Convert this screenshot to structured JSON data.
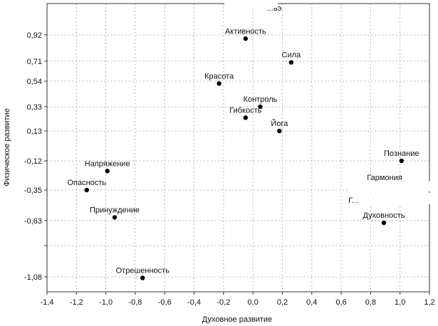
{
  "chart_data": {
    "type": "scatter",
    "xlabel": "Духовное развитие",
    "ylabel": "Физическое развитие",
    "xlim": [
      -1.4,
      1.2
    ],
    "ylim": [
      -1.22,
      1.14
    ],
    "grid": true,
    "x_ticks": [
      -1.4,
      -1.2,
      -1.0,
      -0.8,
      -0.6,
      -0.4,
      -0.2,
      0.0,
      0.2,
      0.4,
      0.6,
      0.8,
      1.0,
      1.2
    ],
    "x_tick_labels": [
      "-1,4",
      "-1,2",
      "-1,0",
      "-0,8",
      "-0,6",
      "-0,4",
      "-0,2",
      "0,0",
      "0,2",
      "0,4",
      "0,6",
      "0,8",
      "1,0",
      "1,2"
    ],
    "y_ticks": [
      0.92,
      0.71,
      0.54,
      0.33,
      0.13,
      -0.12,
      -0.35,
      -0.63,
      -1.08
    ],
    "y_tick_labels": [
      "0,92",
      "0,71",
      "0,54",
      "0,33",
      "0,13",
      "-0,12",
      "-0,35",
      "-0,63",
      "-1,08"
    ],
    "y_extra_grid": [
      -0.86,
      -0.86
    ],
    "points": [
      {
        "label": "Активность",
        "x": -0.05,
        "y": 0.89
      },
      {
        "label": "Сила",
        "x": 0.26,
        "y": 0.7
      },
      {
        "label": "Красота",
        "x": -0.23,
        "y": 0.52
      },
      {
        "label": "Контроль",
        "x": 0.05,
        "y": 0.33
      },
      {
        "label": "Гибкость",
        "x": -0.05,
        "y": 0.24
      },
      {
        "label": "Йога",
        "x": 0.18,
        "y": 0.13
      },
      {
        "label": "Познание",
        "x": 1.01,
        "y": -0.12
      },
      {
        "label": "Напряжение",
        "x": -0.99,
        "y": -0.2
      },
      {
        "label": "Опасность",
        "x": -1.13,
        "y": -0.35
      },
      {
        "label": "Принуждение",
        "x": -0.94,
        "y": -0.6
      },
      {
        "label": "Духовность",
        "x": 0.89,
        "y": -0.65
      },
      {
        "label": "Отрешенность",
        "x": -0.75,
        "y": -1.09
      }
    ],
    "partial_labels": [
      "...вэ",
      "Гармония",
      "Г..."
    ]
  }
}
